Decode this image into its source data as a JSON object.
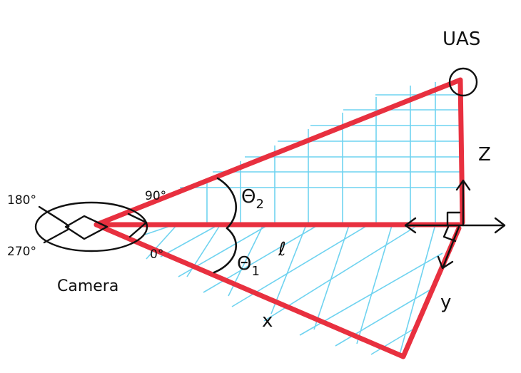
{
  "labels": {
    "uas": "UAS",
    "camera": "Camera",
    "z": "Z",
    "y": "y",
    "x": "x",
    "l": "ℓ",
    "theta2": "Θ",
    "theta2_sub": "2",
    "theta1": "Θ",
    "theta1_sub": "1",
    "deg180": "180°",
    "deg90": "90°",
    "deg270": "270°",
    "deg0": "0°"
  },
  "colors": {
    "outline": "#e8303f",
    "grid": "#6fd3f0",
    "ink": "#111111",
    "background": "#ffffff"
  }
}
